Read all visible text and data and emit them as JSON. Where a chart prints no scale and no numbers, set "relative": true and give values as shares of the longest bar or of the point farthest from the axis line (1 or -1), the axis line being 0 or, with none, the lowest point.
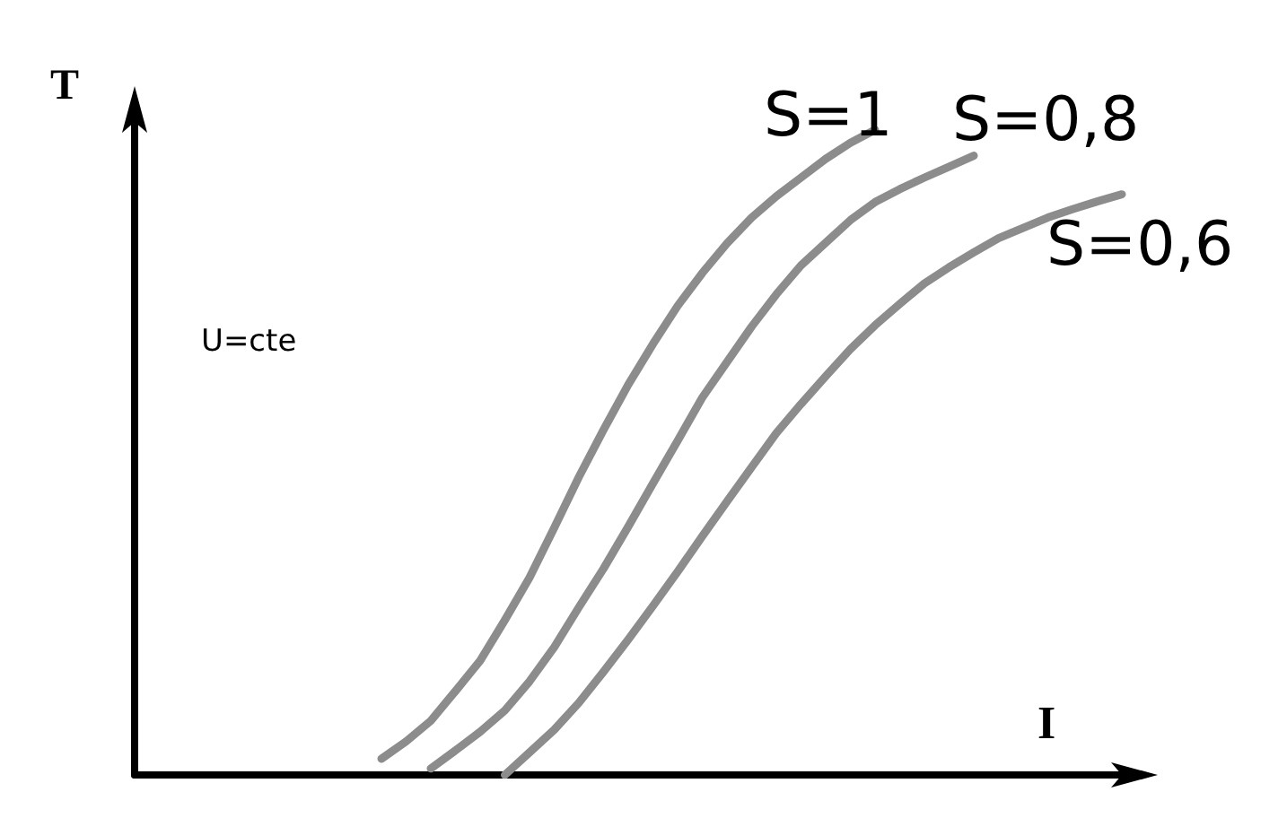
{
  "chart_data": {
    "type": "line",
    "relative": true,
    "xlabel": "I",
    "ylabel": "T",
    "annotations": [
      "U=cte"
    ],
    "tick_labels": false,
    "grid": false,
    "legend": false,
    "marker": "none",
    "line_style": "solid",
    "categories": [
      null,
      null,
      null,
      null,
      null,
      null,
      null,
      null,
      null,
      null,
      null,
      null,
      null,
      null,
      null,
      null,
      null,
      null,
      null,
      null,
      null,
      null,
      null,
      null,
      null,
      null,
      null,
      null,
      null,
      null,
      null,
      null,
      null,
      null,
      null,
      null,
      null,
      null,
      null,
      null,
      null
    ],
    "series": [
      {
        "name": "S=1",
        "color": "#8c8c8c",
        "values": [
          null,
          null,
          null,
          null,
          null,
          null,
          null,
          null,
          null,
          null,
          0.025,
          0.052,
          0.084,
          0.13,
          0.177,
          0.24,
          0.306,
          0.383,
          0.462,
          0.535,
          0.605,
          0.668,
          0.727,
          0.778,
          0.824,
          0.864,
          0.897,
          0.926,
          0.955,
          0.98,
          1.0,
          null,
          null,
          null,
          null,
          null,
          null,
          null,
          null,
          null,
          null
        ]
      },
      {
        "name": "S=0,8",
        "color": "#8c8c8c",
        "values": [
          null,
          null,
          null,
          null,
          null,
          null,
          null,
          null,
          null,
          null,
          null,
          null,
          0.01,
          0.038,
          0.067,
          0.1,
          0.145,
          0.198,
          0.26,
          0.32,
          0.385,
          0.452,
          0.518,
          0.585,
          0.64,
          0.695,
          0.745,
          0.79,
          0.825,
          0.86,
          0.888,
          0.908,
          0.926,
          0.943,
          0.96,
          null,
          null,
          null,
          null,
          null,
          null
        ]
      },
      {
        "name": "S=0,6",
        "color": "#8c8c8c",
        "values": [
          null,
          null,
          null,
          null,
          null,
          null,
          null,
          null,
          null,
          null,
          null,
          null,
          null,
          null,
          null,
          0,
          0.035,
          0.07,
          0.112,
          0.16,
          0.21,
          0.262,
          0.315,
          0.37,
          0.424,
          0.477,
          0.53,
          0.575,
          0.618,
          0.66,
          0.697,
          0.73,
          0.762,
          0.787,
          0.81,
          0.832,
          0.848,
          0.864,
          0.877,
          0.889,
          0.9
        ]
      }
    ]
  }
}
